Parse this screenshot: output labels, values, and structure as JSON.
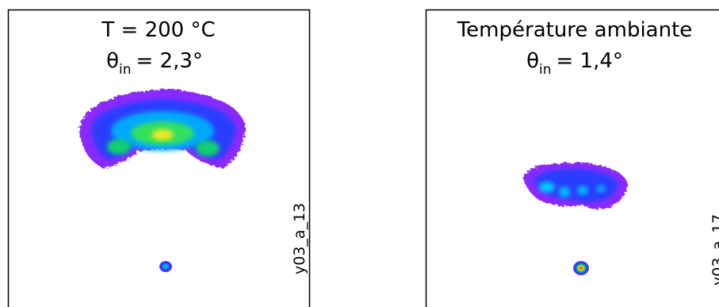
{
  "panels": [
    {
      "title": "T = 200 °C",
      "theta_symbol": "θ",
      "theta_subscript": "in",
      "theta_value": "= 2,3°",
      "side_label": "y03_a_13"
    },
    {
      "title": "Température ambiante",
      "theta_symbol": "θ",
      "theta_subscript": "in",
      "theta_value": "= 1,4°",
      "side_label": "y03_a_17"
    }
  ]
}
